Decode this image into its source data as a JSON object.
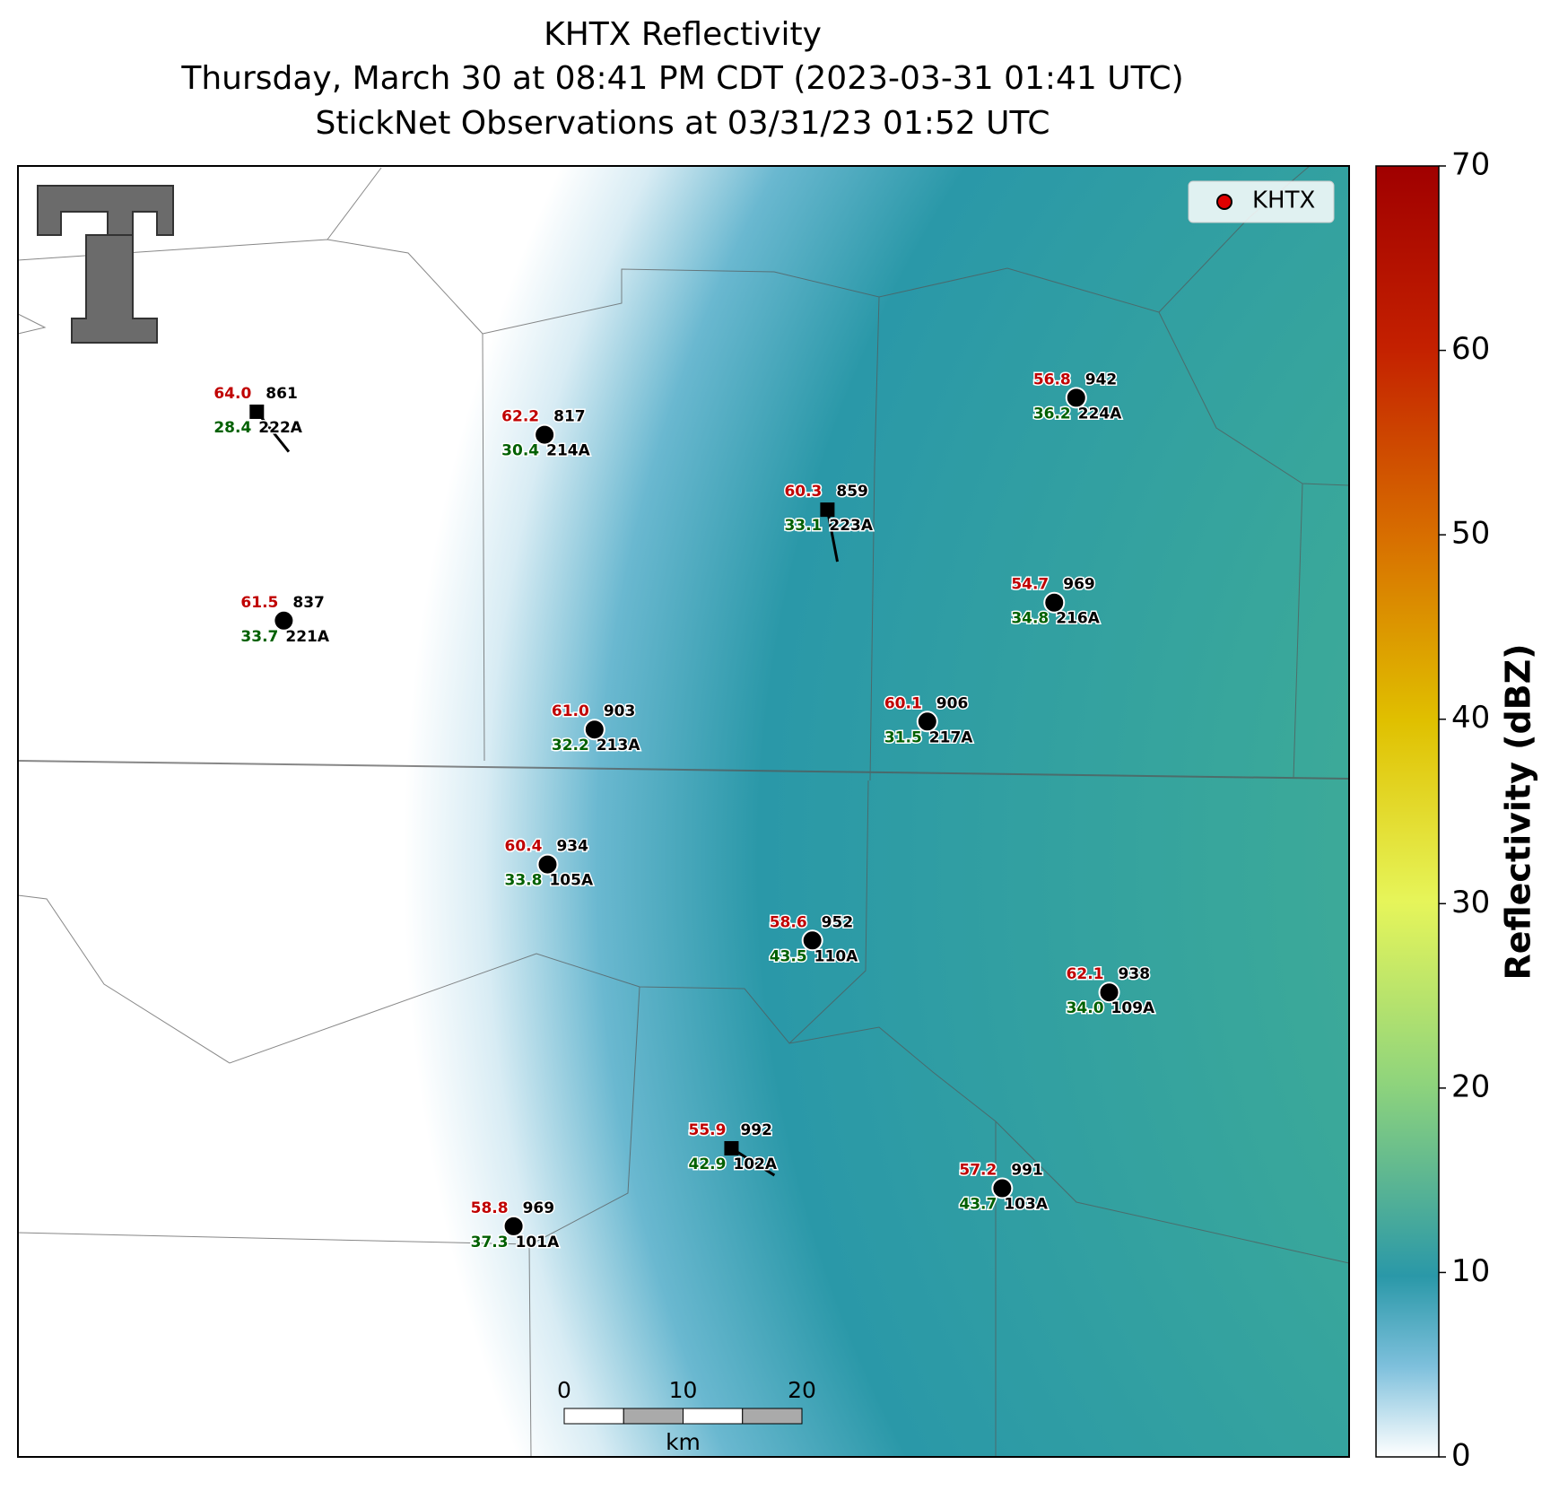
{
  "title": [
    "KHTX Reflectivity",
    "Thursday, March 30 at 08:41 PM CDT (2023-03-31 01:41 UTC)",
    "StickNet Observations at 03/31/23 01:52 UTC"
  ],
  "legend": "KHTX",
  "colorbar": {
    "label": "Reflectivity (dBZ)",
    "clim": [
      0,
      70
    ],
    "ticks": [
      0,
      10,
      20,
      30,
      40,
      50,
      60,
      70
    ]
  },
  "scale_bar": {
    "ticks": [
      0,
      10,
      20
    ],
    "unit": "km"
  },
  "stations": [
    {
      "id": "222A",
      "temperature": "64.0",
      "dewpoint": "28.4",
      "pressure": "861"
    },
    {
      "id": "214A",
      "temperature": "62.2",
      "dewpoint": "30.4",
      "pressure": "817"
    },
    {
      "id": "223A",
      "temperature": "60.3",
      "dewpoint": "33.1",
      "pressure": "859"
    },
    {
      "id": "224A",
      "temperature": "56.8",
      "dewpoint": "36.2",
      "pressure": "942"
    },
    {
      "id": "221A",
      "temperature": "61.5",
      "dewpoint": "33.7",
      "pressure": "837"
    },
    {
      "id": "216A",
      "temperature": "54.7",
      "dewpoint": "34.8",
      "pressure": "969"
    },
    {
      "id": "213A",
      "temperature": "61.0",
      "dewpoint": "32.2",
      "pressure": "903"
    },
    {
      "id": "217A",
      "temperature": "60.1",
      "dewpoint": "31.5",
      "pressure": "906"
    },
    {
      "id": "105A",
      "temperature": "60.4",
      "dewpoint": "33.8",
      "pressure": "934"
    },
    {
      "id": "110A",
      "temperature": "58.6",
      "dewpoint": "43.5",
      "pressure": "952"
    },
    {
      "id": "109A",
      "temperature": "62.1",
      "dewpoint": "34.0",
      "pressure": "938"
    },
    {
      "id": "102A",
      "temperature": "55.9",
      "dewpoint": "42.9",
      "pressure": "992"
    },
    {
      "id": "103A",
      "temperature": "57.2",
      "dewpoint": "43.7",
      "pressure": "991"
    },
    {
      "id": "101A",
      "temperature": "58.8",
      "dewpoint": "37.3",
      "pressure": "969"
    }
  ]
}
